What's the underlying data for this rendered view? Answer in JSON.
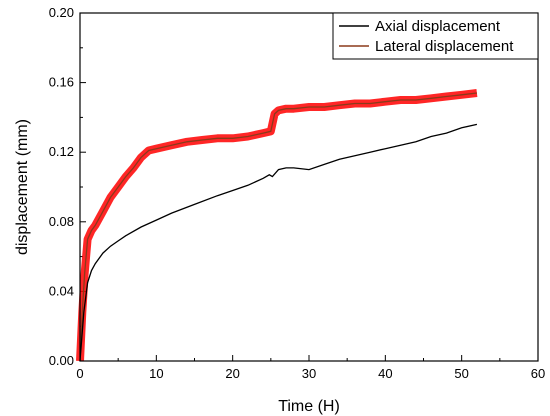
{
  "chart_data": {
    "type": "line",
    "title": "",
    "xlabel": "Time (H)",
    "ylabel": "displacement (mm)",
    "xlim": [
      0,
      60
    ],
    "ylim": [
      0.0,
      0.2
    ],
    "xticks": [
      "0",
      "10",
      "20",
      "30",
      "40",
      "50",
      "60"
    ],
    "yticks": [
      "0.00",
      "0.04",
      "0.08",
      "0.12",
      "0.16",
      "0.20"
    ],
    "grid": false,
    "legend_position": "top-right",
    "series": [
      {
        "name": "Axial displacement",
        "color": "#000000",
        "x": [
          0,
          0.5,
          1,
          1.5,
          2,
          3,
          4,
          5,
          6,
          8,
          10,
          12,
          15,
          18,
          20,
          22,
          24,
          24.8,
          25.2,
          26,
          27,
          28,
          30,
          32,
          34,
          36,
          38,
          40,
          42,
          44,
          46,
          48,
          50,
          52
        ],
        "y": [
          0.0,
          0.028,
          0.045,
          0.052,
          0.056,
          0.062,
          0.066,
          0.069,
          0.072,
          0.077,
          0.081,
          0.085,
          0.09,
          0.095,
          0.098,
          0.101,
          0.105,
          0.107,
          0.106,
          0.11,
          0.111,
          0.111,
          0.11,
          0.113,
          0.116,
          0.118,
          0.12,
          0.122,
          0.124,
          0.126,
          0.129,
          0.131,
          0.134,
          0.136
        ]
      },
      {
        "name": "Lateral displacement",
        "color": "#8b3a1a",
        "band_color": "#ff0000",
        "x": [
          0,
          0.3,
          0.6,
          1,
          1.5,
          2,
          3,
          4,
          5,
          6,
          7,
          8,
          9,
          10,
          12,
          14,
          16,
          18,
          20,
          22,
          24,
          25,
          25.5,
          26,
          27,
          28,
          30,
          32,
          34,
          36,
          38,
          40,
          42,
          44,
          46,
          48,
          50,
          52
        ],
        "y": [
          0.0,
          0.028,
          0.05,
          0.07,
          0.075,
          0.078,
          0.086,
          0.094,
          0.1,
          0.106,
          0.111,
          0.117,
          0.121,
          0.122,
          0.124,
          0.126,
          0.127,
          0.128,
          0.128,
          0.129,
          0.131,
          0.132,
          0.142,
          0.144,
          0.145,
          0.145,
          0.146,
          0.146,
          0.147,
          0.148,
          0.148,
          0.149,
          0.15,
          0.15,
          0.151,
          0.152,
          0.153,
          0.154
        ]
      }
    ]
  }
}
